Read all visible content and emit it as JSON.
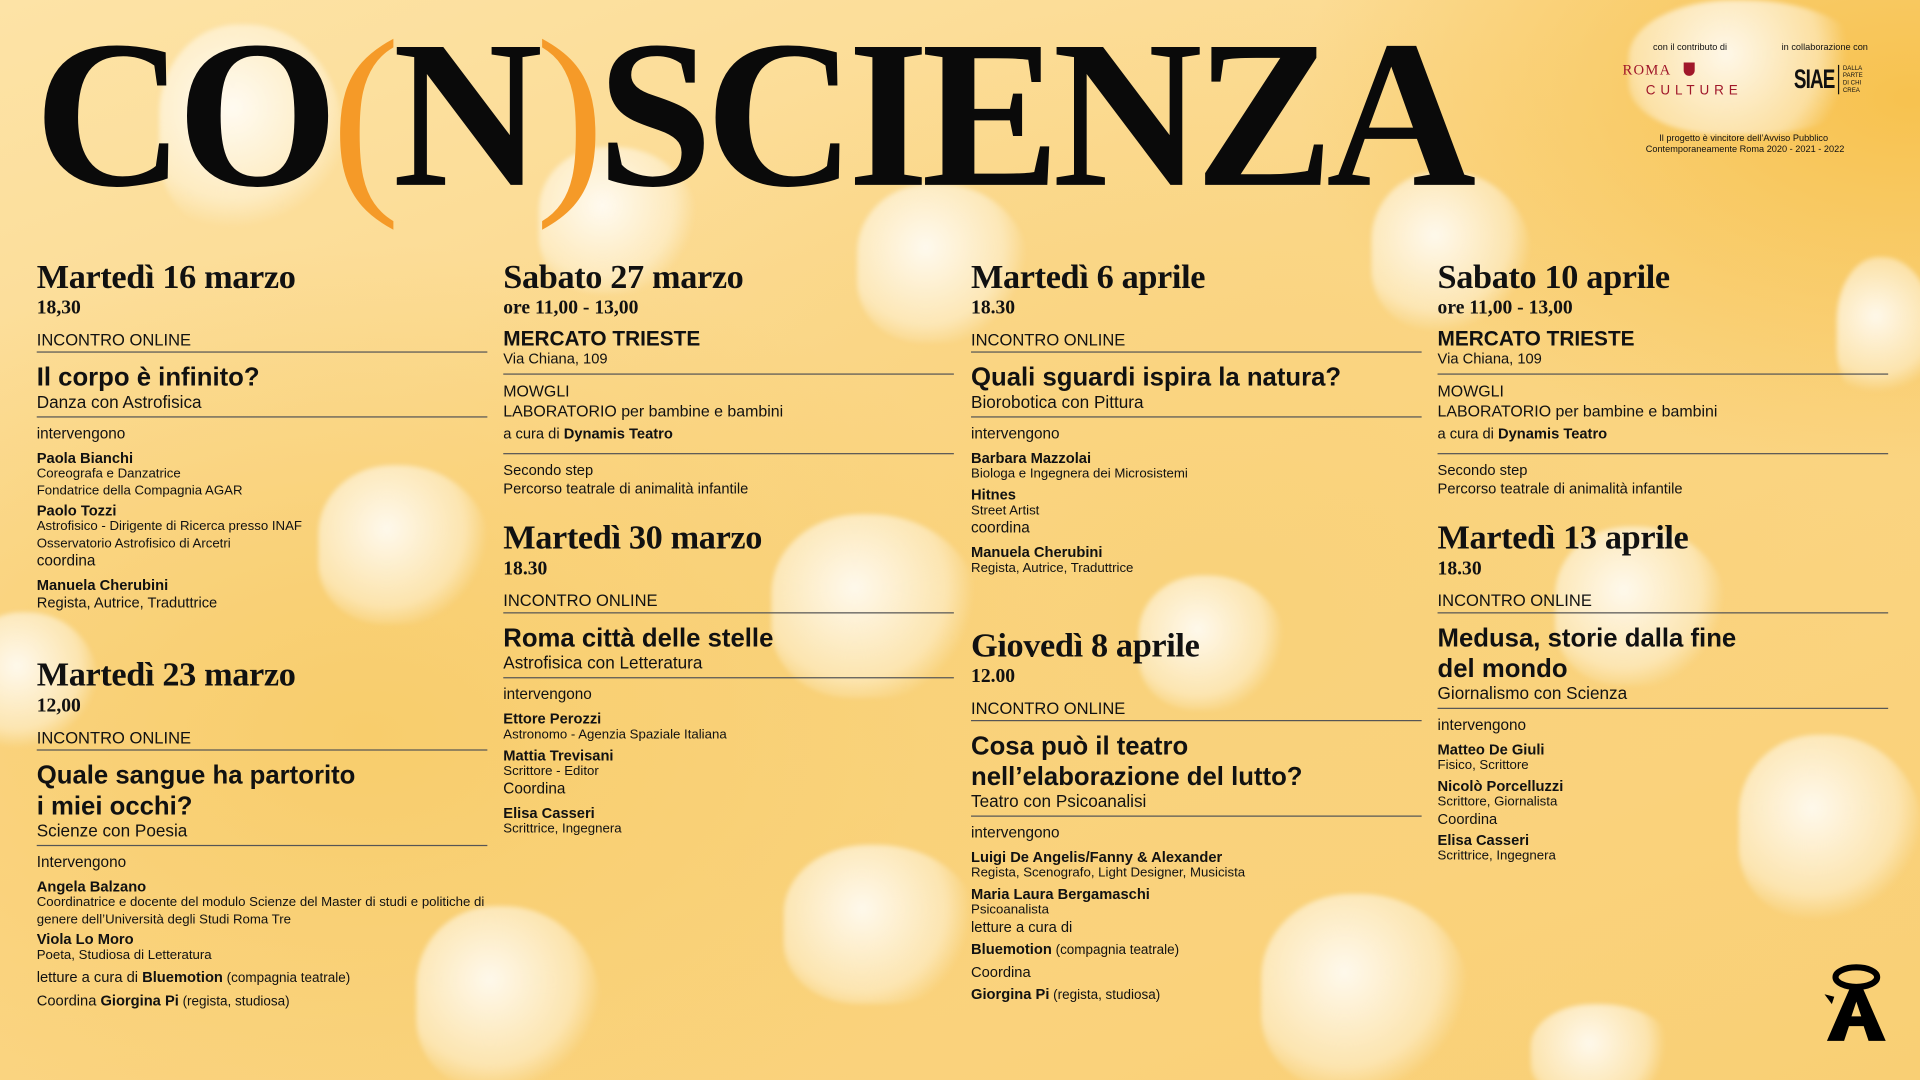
{
  "header": {
    "title_parts": [
      "CO",
      "(",
      "N",
      ")",
      "SCIENZA"
    ]
  },
  "sponsors": {
    "contributo_label": "con il contributo di",
    "collaborazione_label": "in collaborazione con",
    "roma_logo": "ROMA",
    "culture_logo": "CULTURE",
    "siae_logo": "SIAE",
    "siae_tagline": [
      "DALLA",
      "PARTE",
      "DI CHI",
      "CREA"
    ],
    "note_line1": "Il progetto è vincitore dell’Avviso Pubblico",
    "note_line2": "Contemporaneamente Roma 2020 - 2021 - 2022",
    "roma_color": "#a0172a"
  },
  "colors": {
    "accent": "#f59a28",
    "background": "#fbd68a",
    "text": "#111111"
  },
  "columns": [
    {
      "events": [
        {
          "date": "Martedì 16 marzo",
          "time": "18,30",
          "tag": "INCONTRO ONLINE",
          "title": "Il corpo è infinito?",
          "subtitle": "Danza con Astrofisica",
          "blocks": [
            [
              {
                "k": "label",
                "t": "intervengono"
              },
              {
                "k": "name",
                "t": "Paola Bianchi"
              },
              {
                "k": "role",
                "t": "Coreografa e Danzatrice"
              },
              {
                "k": "role",
                "t": "Fondatrice della Compagnia AGAR"
              },
              {
                "k": "name",
                "t": "Paolo Tozzi"
              },
              {
                "k": "role",
                "t": "Astrofisico - Dirigente di Ricerca presso INAF"
              },
              {
                "k": "role",
                "t": "Osservatorio Astrofisico di Arcetri"
              },
              {
                "k": "label",
                "t": "coordina"
              },
              {
                "k": "name",
                "t": "Manuela Cherubini"
              },
              {
                "k": "rolel",
                "t": "Regista, Autrice, Traduttrice"
              }
            ]
          ]
        },
        {
          "date": "Martedì 23 marzo",
          "time": "12,00",
          "tag": "INCONTRO ONLINE",
          "title": "Quale sangue ha partorito\ni miei occhi?",
          "subtitle": "Scienze con Poesia",
          "blocks": [
            [
              {
                "k": "label",
                "t": "Intervengono"
              },
              {
                "k": "name",
                "t": "Angela Balzano"
              },
              {
                "k": "role",
                "t": "Coordinatrice e docente del modulo Scienze del Master di studi e politiche di genere dell’Università degli Studi Roma Tre"
              },
              {
                "k": "name",
                "t": "Viola Lo Moro"
              },
              {
                "k": "role",
                "t": "Poeta, Studiosa di Letteratura"
              },
              {
                "k": "mixed",
                "parts": [
                  {
                    "t": "letture a cura di "
                  },
                  {
                    "t": "Bluemotion",
                    "s": "b"
                  },
                  {
                    "t": " (compagnia teatrale)",
                    "s": "s"
                  }
                ]
              },
              {
                "k": "mixed",
                "parts": [
                  {
                    "t": "Coordina "
                  },
                  {
                    "t": "Giorgina Pi",
                    "s": "b"
                  },
                  {
                    "t": " (regista, studiosa)",
                    "s": "s"
                  }
                ]
              }
            ]
          ]
        }
      ]
    },
    {
      "events": [
        {
          "date": "Sabato 27 marzo",
          "time": "ore 11,00 - 13,00",
          "venue": "MERCATO TRIESTE",
          "address": "Via Chiana, 109",
          "blocks": [
            [
              {
                "k": "lead",
                "t": "MOWGLI"
              },
              {
                "k": "lead",
                "t": "LABORATORIO per bambine e bambini"
              },
              {
                "k": "mixed",
                "parts": [
                  {
                    "t": "a cura di "
                  },
                  {
                    "t": "Dynamis Teatro",
                    "s": "b"
                  }
                ]
              }
            ],
            [
              {
                "k": "rolel",
                "t": "Secondo step"
              },
              {
                "k": "rolel",
                "t": "Percorso teatrale di animalità infantile"
              }
            ]
          ]
        },
        {
          "date": "Martedì 30 marzo",
          "time": "18.30",
          "tag": "INCONTRO ONLINE",
          "title": "Roma città delle stelle",
          "subtitle": "Astrofisica con Letteratura",
          "blocks": [
            [
              {
                "k": "label",
                "t": "intervengono"
              },
              {
                "k": "name",
                "t": "Ettore Perozzi"
              },
              {
                "k": "role",
                "t": "Astronomo - Agenzia Spaziale Italiana"
              },
              {
                "k": "name",
                "t": "Mattia Trevisani"
              },
              {
                "k": "role",
                "t": "Scrittore - Editor"
              },
              {
                "k": "label",
                "t": "Coordina"
              },
              {
                "k": "name",
                "t": "Elisa Casseri"
              },
              {
                "k": "role",
                "t": "Scrittrice, Ingegnera"
              }
            ]
          ]
        }
      ]
    },
    {
      "events": [
        {
          "date": "Martedì 6 aprile",
          "time": "18.30",
          "tag": "INCONTRO ONLINE",
          "title": "Quali sguardi ispira la natura?",
          "subtitle": "Biorobotica con Pittura",
          "blocks": [
            [
              {
                "k": "label",
                "t": "intervengono"
              },
              {
                "k": "name",
                "t": "Barbara Mazzolai"
              },
              {
                "k": "role",
                "t": "Biologa e Ingegnera dei Microsistemi"
              },
              {
                "k": "name",
                "t": "Hitnes"
              },
              {
                "k": "role",
                "t": "Street Artist"
              },
              {
                "k": "label",
                "t": "coordina"
              },
              {
                "k": "name",
                "t": "Manuela Cherubini"
              },
              {
                "k": "role",
                "t": "Regista, Autrice, Traduttrice"
              }
            ]
          ]
        },
        {
          "date": "Giovedì 8 aprile",
          "time": "12.00",
          "tag": "INCONTRO ONLINE",
          "title": "Cosa può il teatro\nnell’elaborazione del lutto?",
          "subtitle": "Teatro con Psicoanalisi",
          "blocks": [
            [
              {
                "k": "label",
                "t": "intervengono"
              },
              {
                "k": "name",
                "t": "Luigi De Angelis/Fanny & Alexander"
              },
              {
                "k": "role",
                "t": "Regista, Scenografo, Light Designer, Musicista"
              },
              {
                "k": "name",
                "t": "Maria Laura Bergamaschi"
              },
              {
                "k": "role",
                "t": "Psicoanalista"
              },
              {
                "k": "rolel",
                "t": "letture a cura di"
              },
              {
                "k": "mixed",
                "parts": [
                  {
                    "t": "Bluemotion",
                    "s": "b"
                  },
                  {
                    "t": " (compagnia teatrale)",
                    "s": "s"
                  }
                ]
              },
              {
                "k": "rolel",
                "t": "Coordina"
              },
              {
                "k": "mixed",
                "parts": [
                  {
                    "t": "Giorgina Pi",
                    "s": "b"
                  },
                  {
                    "t": " (regista, studiosa)",
                    "s": "s"
                  }
                ]
              }
            ]
          ]
        }
      ]
    },
    {
      "events": [
        {
          "date": "Sabato 10 aprile",
          "time": "ore 11,00 - 13,00",
          "venue": "MERCATO TRIESTE",
          "address": "Via Chiana, 109",
          "blocks": [
            [
              {
                "k": "lead",
                "t": "MOWGLI"
              },
              {
                "k": "lead",
                "t": "LABORATORIO per bambine e bambini"
              },
              {
                "k": "mixed",
                "parts": [
                  {
                    "t": "a cura di "
                  },
                  {
                    "t": "Dynamis Teatro",
                    "s": "b"
                  }
                ]
              }
            ],
            [
              {
                "k": "rolel",
                "t": "Secondo step"
              },
              {
                "k": "rolel",
                "t": "Percorso teatrale di animalità infantile"
              }
            ]
          ]
        },
        {
          "date": "Martedì 13 aprile",
          "time": "18.30",
          "tag": "INCONTRO ONLINE",
          "title": "Medusa, storie dalla fine\ndel mondo",
          "subtitle": "Giornalismo con Scienza",
          "blocks": [
            [
              {
                "k": "label",
                "t": "intervengono"
              },
              {
                "k": "name",
                "t": "Matteo De Giuli"
              },
              {
                "k": "role",
                "t": "Fisico, Scrittore"
              },
              {
                "k": "name",
                "t": "Nicolò Porcelluzzi"
              },
              {
                "k": "role",
                "t": "Scrittore, Giornalista"
              },
              {
                "k": "rolel",
                "t": "Coordina"
              },
              {
                "k": "name",
                "t": "Elisa Casseri"
              },
              {
                "k": "role",
                "t": "Scrittrice, Ingegnera"
              }
            ]
          ]
        }
      ]
    }
  ]
}
